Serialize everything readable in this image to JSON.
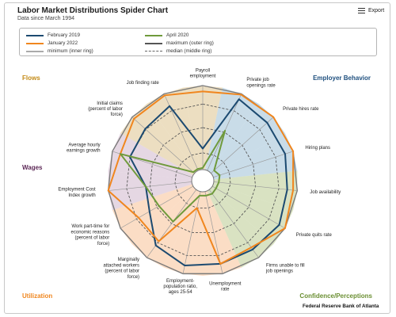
{
  "header": {
    "title": "Labor Market Distributions Spider Chart",
    "subtitle": "Data since March 1994",
    "export_label": "Export"
  },
  "footer": {
    "source": "Federal Reserve Bank of Atlanta"
  },
  "chart_data": {
    "type": "radar",
    "title": "Labor Market Distributions Spider Chart",
    "subtitle": "Data since March 1994",
    "axes": [
      [
        "Payroll",
        "employment"
      ],
      [
        "Private job",
        "openings rate"
      ],
      [
        "Private hires rate"
      ],
      [
        "Hiring plans"
      ],
      [
        "Job availability"
      ],
      [
        "Private quits rate"
      ],
      [
        "Firms unable to fill",
        "job openings"
      ],
      [
        "Unemployment",
        "rate"
      ],
      [
        "Employment-",
        "population ratio,",
        "ages 25-54"
      ],
      [
        "Marginally",
        "attached workers",
        "(percent of labor",
        "force)"
      ],
      [
        "Work part-time for",
        "economic reasons",
        "(percent of labor",
        "force)"
      ],
      [
        "Employment Cost",
        "Index growth"
      ],
      [
        "Average hourly",
        "earnings growth"
      ],
      [
        "Initial claims",
        "(percent of labor",
        "force)"
      ],
      [
        "Job finding rate"
      ]
    ],
    "scale": {
      "min": 0,
      "max": 1
    },
    "rings": [
      "minimum (inner ring)",
      "median (middle ring)",
      "maximum (outer ring)"
    ],
    "groups": [
      {
        "name": "Employer Behavior",
        "color": "#1e4f7e",
        "fill": "#9dbfd6",
        "axes": [
          1,
          2,
          3
        ]
      },
      {
        "name": "Confidence/Perceptions",
        "color": "#6b8f33",
        "fill": "#b9cb90",
        "axes": [
          4,
          5,
          6
        ]
      },
      {
        "name": "Utilization",
        "color": "#f0861e",
        "fill": "#f7c195",
        "axes": [
          7,
          8,
          9,
          10
        ]
      },
      {
        "name": "Wages",
        "color": "#5e2a58",
        "fill": "#cfb6cc",
        "axes": [
          11,
          12
        ]
      },
      {
        "name": "Flows",
        "color": "#c38a16",
        "fill": "#dcc38e",
        "axes": [
          13,
          14,
          0
        ]
      }
    ],
    "series": [
      {
        "name": "February 2019",
        "color": "#1c4a70",
        "values": [
          0.25,
          0.93,
          0.9,
          0.9,
          0.88,
          0.92,
          0.88,
          0.88,
          0.9,
          0.82,
          0.6,
          0.55,
          0.78,
          0.79,
          0.84
        ]
      },
      {
        "name": "January 2022",
        "color": "#f0861e",
        "values": [
          0.93,
          0.99,
          1.0,
          1.0,
          0.95,
          1.0,
          0.85,
          0.88,
          0.2,
          0.76,
          0.75,
          1.0,
          0.9,
          0.97,
          0.98
        ]
      },
      {
        "name": "April 2020",
        "color": "#6f9a3b",
        "values": [
          0.02,
          0.52,
          0.05,
          0.08,
          0.06,
          0.05,
          0.06,
          0.05,
          0.05,
          0.47,
          0.47,
          0.55,
          0.9,
          0.02,
          0.02
        ]
      }
    ]
  },
  "legend": [
    {
      "label": "February 2019",
      "color": "#1c4a70",
      "style": "solid"
    },
    {
      "label": "April 2020",
      "color": "#6f9a3b",
      "style": "solid"
    },
    {
      "label": "January 2022",
      "color": "#f0861e",
      "style": "solid"
    },
    {
      "label": "maximum (outer ring)",
      "color": "#555555",
      "style": "solid"
    },
    {
      "label": "minimum (inner ring)",
      "color": "#aaaaaa",
      "style": "solid"
    },
    {
      "label": "median (middle ring)",
      "color": "#666666",
      "style": "dashed"
    }
  ]
}
